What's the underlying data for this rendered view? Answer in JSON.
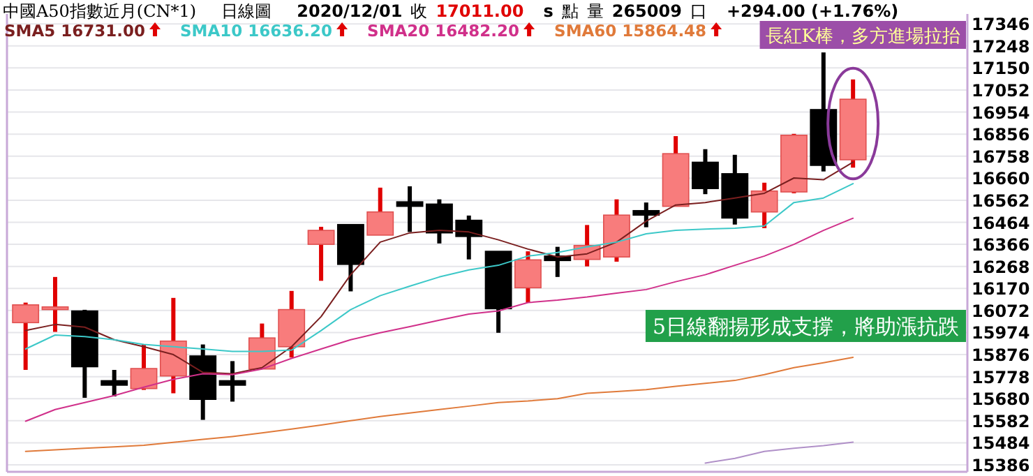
{
  "chart_data": {
    "type": "candlestick",
    "title": "中國A50指數近月(CN*1)",
    "subtitle": "日線圖",
    "annotations": [
      "2020/12/01",
      "收",
      "17011.00",
      "s",
      "點",
      "量",
      "265009",
      "口",
      "+294.00 (+1.76%)",
      "長紅K棒，多方進場拉抬",
      "5日線翻揚形成支撐，將助漲抗跌"
    ],
    "categories": [
      null,
      null,
      null,
      null,
      null,
      null,
      null,
      null,
      null,
      null,
      null,
      null,
      null,
      null,
      null,
      null,
      null,
      null,
      null,
      null,
      null,
      null,
      null,
      null,
      null,
      null,
      null,
      null,
      null
    ],
    "ohlc": [
      [
        16018,
        16107,
        15808,
        16097
      ],
      [
        16076,
        16221,
        15977,
        16088
      ],
      [
        16070,
        16075,
        15684,
        15822
      ],
      [
        15760,
        15808,
        15690,
        15740
      ],
      [
        15725,
        15921,
        15719,
        15814
      ],
      [
        15781,
        16128,
        15704,
        15936
      ],
      [
        15870,
        15921,
        15586,
        15677
      ],
      [
        15760,
        15847,
        15667,
        15740
      ],
      [
        15812,
        16014,
        15812,
        15950
      ],
      [
        15911,
        16159,
        15863,
        16076
      ],
      [
        16366,
        16444,
        16204,
        16428
      ],
      [
        16454,
        16454,
        16157,
        16277
      ],
      [
        16407,
        16618,
        16407,
        16510
      ],
      [
        16555,
        16624,
        16421,
        16535
      ],
      [
        16545,
        16566,
        16370,
        16417
      ],
      [
        16473,
        16494,
        16299,
        16401
      ],
      [
        16335,
        16335,
        15973,
        16080
      ],
      [
        16173,
        16335,
        16107,
        16297
      ],
      [
        16314,
        16355,
        16221,
        16294
      ],
      [
        16299,
        16452,
        16268,
        16361
      ],
      [
        16310,
        16566,
        16289,
        16496
      ],
      [
        16516,
        16552,
        16442,
        16496
      ],
      [
        16535,
        16847,
        16535,
        16769
      ],
      [
        16731,
        16789,
        16589,
        16614
      ],
      [
        16680,
        16764,
        16454,
        16483
      ],
      [
        16510,
        16640,
        16438,
        16603
      ],
      [
        16599,
        16857,
        16593,
        16851
      ],
      [
        16965,
        17219,
        16690,
        16717
      ],
      [
        16742,
        17099,
        16707,
        17011
      ]
    ],
    "colors": [
      "#f87c7c",
      "#f87c7c",
      "#000000",
      "#000000",
      "#f87c7c",
      "#f87c7c",
      "#000000",
      "#000000",
      "#f87c7c",
      "#f87c7c",
      "#f87c7c",
      "#000000",
      "#f87c7c",
      "#000000",
      "#000000",
      "#000000",
      "#000000",
      "#f87c7c",
      "#000000",
      "#f87c7c",
      "#f87c7c",
      "#000000",
      "#f87c7c",
      "#000000",
      "#000000",
      "#f87c7c",
      "#f87c7c",
      "#000000",
      "#f87c7c"
    ],
    "series": [
      {
        "type": "line",
        "name": "SMA5 16731.00",
        "color": "#7a1f1f",
        "values": [
          15983,
          16010,
          15998,
          15942,
          15911,
          15876,
          15797,
          15791,
          15818,
          15911,
          16045,
          16231,
          16376,
          16417,
          16428,
          16421,
          16386,
          16345,
          16310,
          16324,
          16376,
          16469,
          16541,
          16552,
          16572,
          16593,
          16661,
          16653,
          16731
        ]
      },
      {
        "type": "line",
        "name": "SMA10 16636.20",
        "color": "#3cc8c8",
        "values": [
          15901,
          15963,
          15956,
          15942,
          15921,
          15911,
          15901,
          15890,
          15890,
          15896,
          15983,
          16076,
          16138,
          16180,
          16221,
          16252,
          16273,
          16314,
          16330,
          16355,
          16376,
          16413,
          16428,
          16434,
          16438,
          16448,
          16552,
          16572,
          16636
        ]
      },
      {
        "type": "line",
        "name": "SMA20 16482.20",
        "color": "#d0308a",
        "values": [
          15580,
          15632,
          15663,
          15694,
          15731,
          15766,
          15791,
          15787,
          15812,
          15859,
          15901,
          15942,
          15973,
          16000,
          16029,
          16056,
          16070,
          16107,
          16118,
          16132,
          16149,
          16165,
          16200,
          16231,
          16273,
          16314,
          16366,
          16428,
          16482
        ]
      },
      {
        "type": "line",
        "name": "SMA60 15864.48",
        "color": "#e07a3a",
        "values": [
          15446,
          15453,
          15460,
          15466,
          15473,
          15486,
          15499,
          15512,
          15528,
          15545,
          15563,
          15582,
          15601,
          15616,
          15632,
          15647,
          15663,
          15670,
          15680,
          15704,
          15712,
          15720,
          15735,
          15748,
          15761,
          15787,
          15818,
          15840,
          15864
        ]
      },
      {
        "type": "line",
        "color": "#b090c8",
        "values": [
          null,
          null,
          null,
          null,
          null,
          null,
          null,
          null,
          null,
          null,
          null,
          null,
          null,
          null,
          null,
          null,
          null,
          null,
          null,
          null,
          null,
          null,
          null,
          15394,
          15415,
          15446,
          15460,
          15471,
          15487
        ]
      }
    ],
    "ylim": [
      15355,
      17390
    ],
    "yticks": [
      15386,
      15484,
      15582,
      15680,
      15778,
      15876,
      15974,
      16072,
      16170,
      16268,
      16366,
      16464,
      16562,
      16660,
      16758,
      16856,
      16954,
      17052,
      17150,
      17248,
      17346
    ],
    "grid": "y",
    "legend": "top left",
    "tick_labels": "y"
  }
}
